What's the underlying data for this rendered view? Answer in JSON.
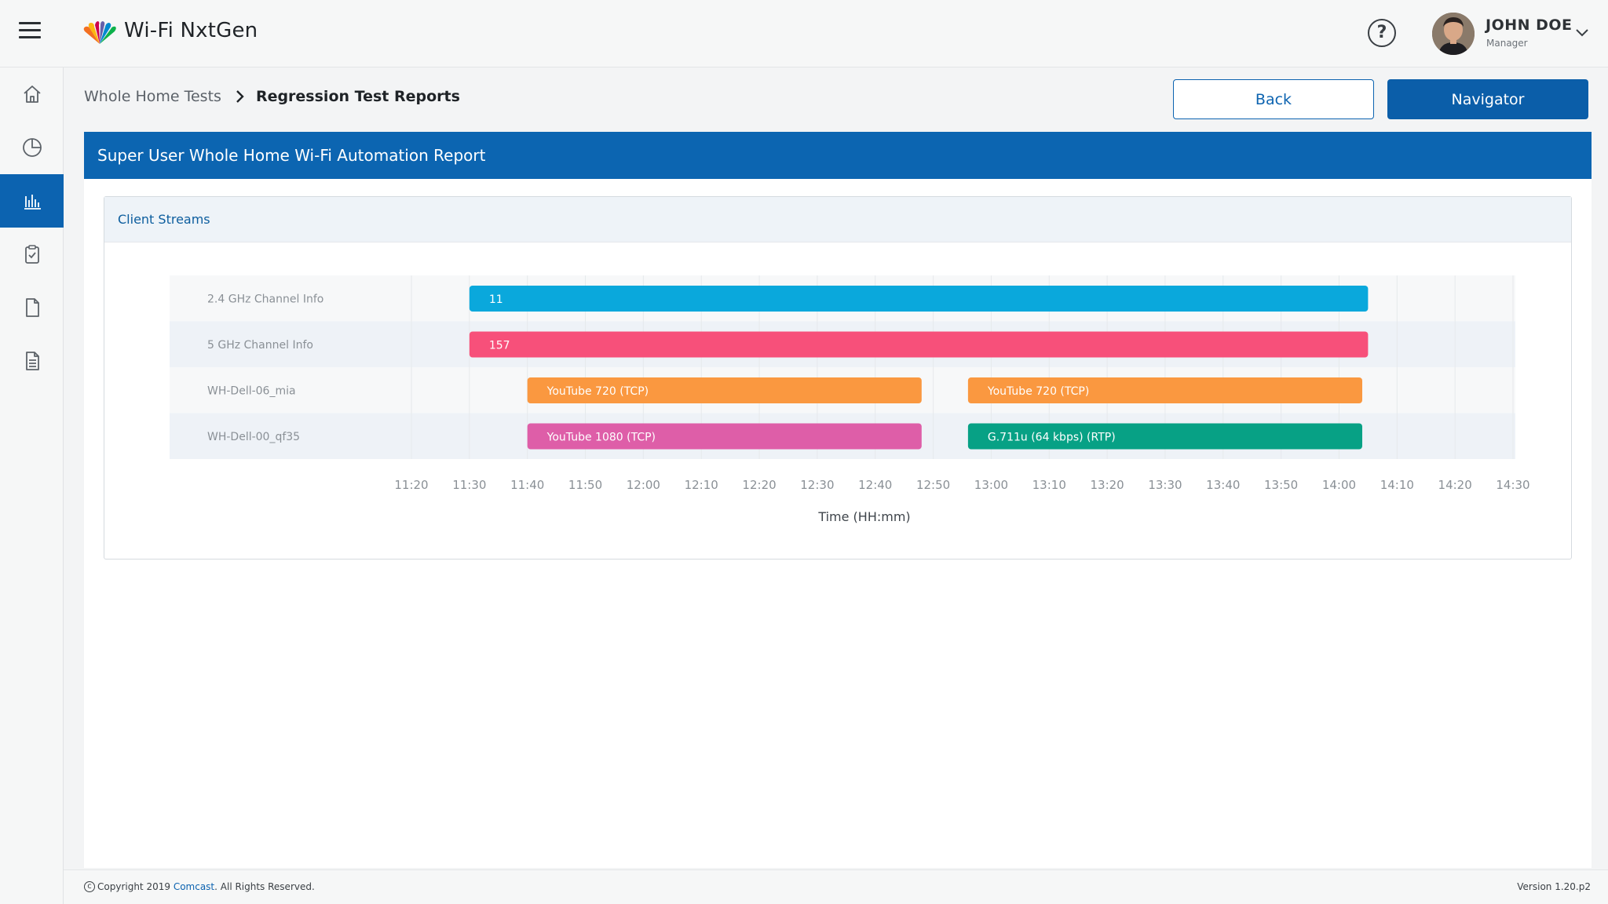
{
  "app": {
    "title": "Wi-Fi NxtGen"
  },
  "user": {
    "name": "JOHN DOE",
    "role": "Manager"
  },
  "sidebar": {
    "items": [
      {
        "icon": "home-icon",
        "active": false
      },
      {
        "icon": "pie-chart-icon",
        "active": false
      },
      {
        "icon": "bar-chart-icon",
        "active": true
      },
      {
        "icon": "clipboard-icon",
        "active": false
      },
      {
        "icon": "document-icon",
        "active": false
      },
      {
        "icon": "report-document-icon",
        "active": false
      }
    ]
  },
  "breadcrumb": {
    "parent": "Whole Home Tests",
    "current": "Regression Test Reports"
  },
  "actions": {
    "back_label": "Back",
    "navigator_label": "Navigator"
  },
  "report": {
    "title": "Super User Whole Home Wi-Fi Automation Report",
    "panel_title": "Client Streams"
  },
  "chart_data": {
    "type": "timeline",
    "xlabel": "Time (HH:mm)",
    "x_ticks": [
      "11:20",
      "11:30",
      "11:40",
      "11:50",
      "12:00",
      "12:10",
      "12:20",
      "12:30",
      "12:40",
      "12:50",
      "13:00",
      "13:10",
      "13:20",
      "13:30",
      "13:40",
      "13:50",
      "14:00",
      "14:10",
      "14:20",
      "14:30"
    ],
    "rows": [
      "2.4 GHz Channel Info",
      "5 GHz Channel Info",
      "WH-Dell-06_mia",
      "WH-Dell-00_qf35"
    ],
    "bars": [
      {
        "row": 0,
        "label": "11",
        "start": "11:30",
        "end": "14:05",
        "color": "#0aa8dc"
      },
      {
        "row": 1,
        "label": "157",
        "start": "11:30",
        "end": "14:05",
        "color": "#f7507a"
      },
      {
        "row": 2,
        "label": "YouTube 720 (TCP)",
        "start": "11:40",
        "end": "12:48",
        "color": "#fa9840"
      },
      {
        "row": 2,
        "label": "YouTube 720 (TCP)",
        "start": "12:56",
        "end": "14:04",
        "color": "#fa9840"
      },
      {
        "row": 3,
        "label": "YouTube 1080 (TCP)",
        "start": "11:40",
        "end": "12:48",
        "color": "#de5ea8"
      },
      {
        "row": 3,
        "label": "G.711u (64 kbps) (RTP)",
        "start": "12:56",
        "end": "14:04",
        "color": "#07a185"
      }
    ]
  },
  "footer": {
    "copyright_prefix": "Copyright 2019 ",
    "company": "Comcast",
    "copyright_suffix": ". All Rights Reserved.",
    "version": "Version 1.20.p2"
  },
  "colors": {
    "primary": "#0c63b0",
    "header_bar": "#0c65b1"
  }
}
